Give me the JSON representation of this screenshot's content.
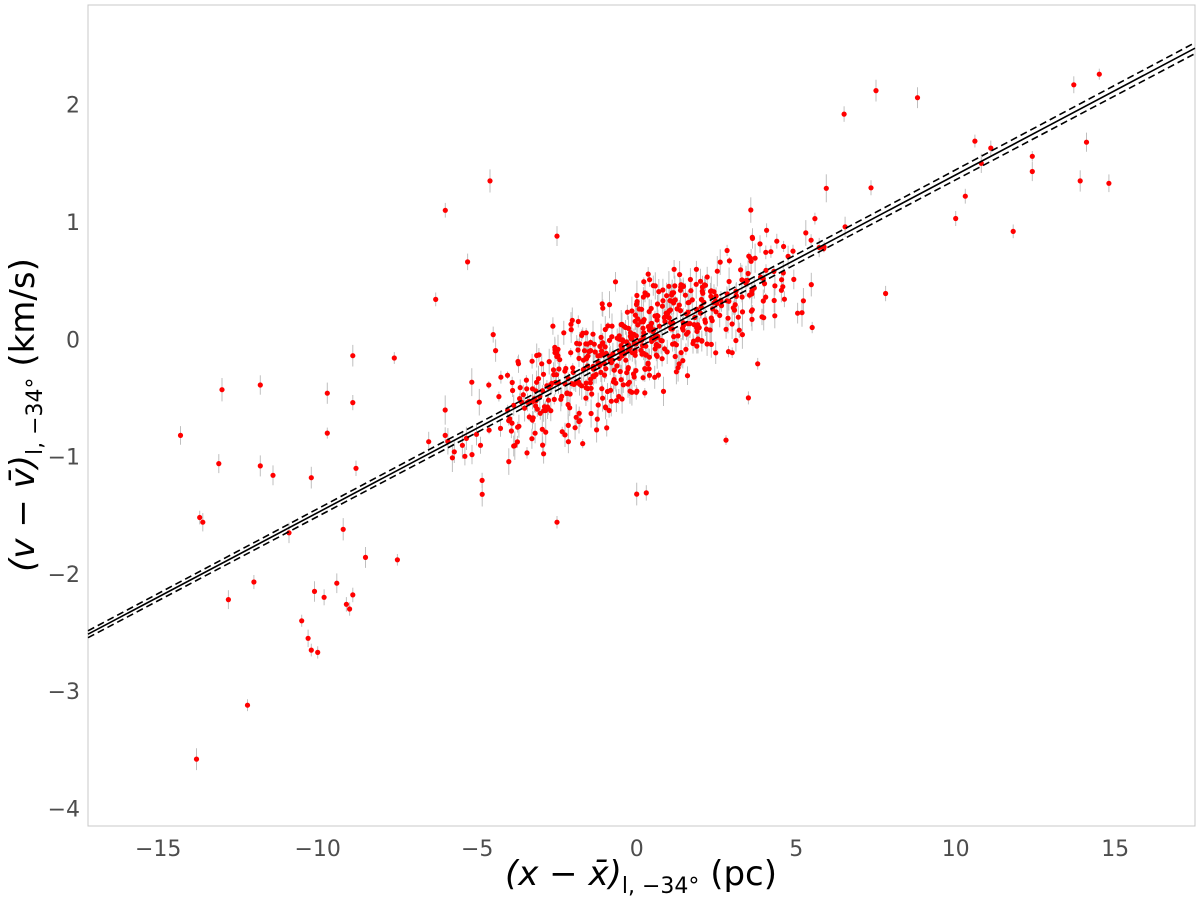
{
  "chart_data": {
    "type": "scatter",
    "xlabel": {
      "main": "(x − x̄)",
      "sub": "l, −34°",
      "unit": " (pc)"
    },
    "ylabel": {
      "main": "(v − v̄)",
      "sub": "l, −34°",
      "unit": " (km/s)"
    },
    "xlim": [
      -17.2,
      17.5
    ],
    "ylim": [
      -4.15,
      2.85
    ],
    "x_ticks": [
      -15,
      -10,
      -5,
      0,
      5,
      10,
      15
    ],
    "y_ticks": [
      -4,
      -3,
      -2,
      -1,
      0,
      1,
      2
    ],
    "x_tick_labels": [
      "−15",
      "−10",
      "−5",
      "0",
      "5",
      "10",
      "15"
    ],
    "y_tick_labels": [
      "−4",
      "−3",
      "−2",
      "−1",
      "0",
      "1",
      "2"
    ],
    "grid": false,
    "legend": "none",
    "colors": {
      "points": "#ff0000",
      "errorbars": "#bfbfbf",
      "fit": "#000000",
      "frame": "#c8c8c8"
    },
    "fit": {
      "slope": 0.144,
      "intercept": -0.038
    },
    "fit_bounds": [
      {
        "slope": 0.1445,
        "intercept": 0.0
      },
      {
        "slope": 0.1435,
        "intercept": -0.076
      }
    ],
    "outliers": [
      {
        "x": -14.3,
        "y": -0.82
      },
      {
        "x": -13.7,
        "y": -1.52
      },
      {
        "x": -13.6,
        "y": -1.56
      },
      {
        "x": -13.0,
        "y": -0.43
      },
      {
        "x": -13.1,
        "y": -1.06
      },
      {
        "x": -12.8,
        "y": -2.22
      },
      {
        "x": -12.2,
        "y": -3.12
      },
      {
        "x": -13.8,
        "y": -3.58
      },
      {
        "x": -11.8,
        "y": -0.39
      },
      {
        "x": -11.8,
        "y": -1.08
      },
      {
        "x": -11.4,
        "y": -1.16
      },
      {
        "x": -12.0,
        "y": -2.07
      },
      {
        "x": -10.9,
        "y": -1.65
      },
      {
        "x": -10.5,
        "y": -2.4
      },
      {
        "x": -10.3,
        "y": -2.55
      },
      {
        "x": -10.2,
        "y": -2.65
      },
      {
        "x": -10.0,
        "y": -2.67
      },
      {
        "x": -10.1,
        "y": -2.15
      },
      {
        "x": -10.2,
        "y": -1.18
      },
      {
        "x": -9.7,
        "y": -0.46
      },
      {
        "x": -9.7,
        "y": -0.8
      },
      {
        "x": -9.8,
        "y": -2.2
      },
      {
        "x": -9.4,
        "y": -2.08
      },
      {
        "x": -9.1,
        "y": -2.26
      },
      {
        "x": -9.0,
        "y": -2.3
      },
      {
        "x": -8.9,
        "y": -2.18
      },
      {
        "x": -9.2,
        "y": -1.62
      },
      {
        "x": -8.9,
        "y": -0.14
      },
      {
        "x": -8.9,
        "y": -0.54
      },
      {
        "x": -8.8,
        "y": -1.1
      },
      {
        "x": -8.5,
        "y": -1.86
      },
      {
        "x": -7.6,
        "y": -0.16
      },
      {
        "x": -7.5,
        "y": -1.88
      },
      {
        "x": -6.3,
        "y": 0.34
      },
      {
        "x": -6.0,
        "y": 1.1
      },
      {
        "x": -5.3,
        "y": 0.66
      },
      {
        "x": -4.6,
        "y": 1.35
      },
      {
        "x": -4.5,
        "y": 0.04
      },
      {
        "x": -2.5,
        "y": 0.88
      },
      {
        "x": -2.5,
        "y": -1.56
      },
      {
        "x": 6.5,
        "y": 1.92
      },
      {
        "x": 7.5,
        "y": 2.12
      },
      {
        "x": 8.8,
        "y": 2.06
      },
      {
        "x": 11.8,
        "y": 0.92
      },
      {
        "x": 13.7,
        "y": 2.17
      },
      {
        "x": 13.9,
        "y": 1.35
      },
      {
        "x": 14.1,
        "y": 1.68
      },
      {
        "x": 14.5,
        "y": 2.26
      },
      {
        "x": 14.8,
        "y": 1.33
      },
      {
        "x": 12.4,
        "y": 1.56
      },
      {
        "x": 12.4,
        "y": 1.43
      },
      {
        "x": 11.1,
        "y": 1.63
      },
      {
        "x": 10.8,
        "y": 1.5
      },
      {
        "x": 10.6,
        "y": 1.69
      },
      {
        "x": 10.3,
        "y": 1.22
      },
      {
        "x": 10.0,
        "y": 1.03
      },
      {
        "x": 7.8,
        "y": 0.39
      },
      {
        "x": 0.0,
        "y": -1.32
      },
      {
        "x": 0.3,
        "y": -1.31
      },
      {
        "x": 2.8,
        "y": -0.86
      },
      {
        "x": 3.5,
        "y": -0.5
      },
      {
        "x": 5.5,
        "y": 0.1
      }
    ],
    "n_cluster_points": 560
  }
}
